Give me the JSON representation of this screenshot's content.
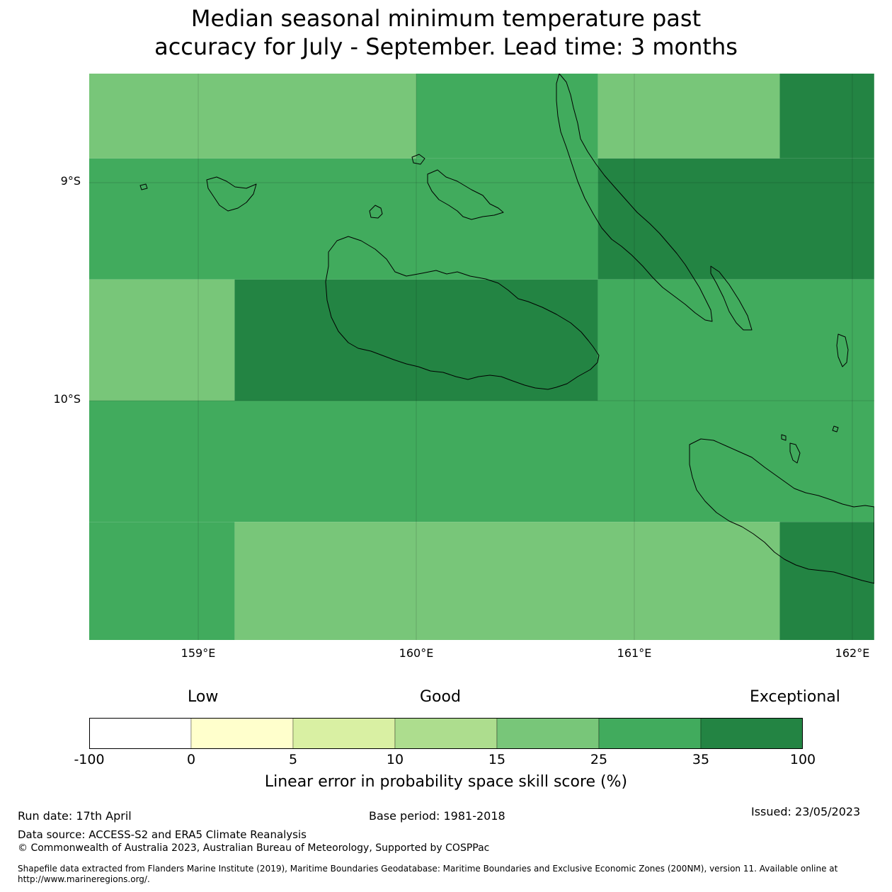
{
  "title": {
    "line1": "Median seasonal minimum temperature past",
    "line2": "accuracy for July - September. Lead time: 3 months"
  },
  "map": {
    "lat_labels": [
      "9°S",
      "10°S"
    ],
    "lon_labels": [
      "159°E",
      "160°E",
      "161°E",
      "162°E"
    ],
    "extent": {
      "lon_min": 158.5,
      "lon_max": 162.1,
      "lat_max": -8.5,
      "lat_min": -11.1
    },
    "grid_cells": [
      {
        "lon0": 158.5,
        "lon1": 160.0,
        "lat0": -8.5,
        "lat1": -8.889,
        "class": 4
      },
      {
        "lon0": 160.0,
        "lon1": 160.833,
        "lat0": -8.5,
        "lat1": -8.889,
        "class": 5
      },
      {
        "lon0": 160.833,
        "lon1": 161.667,
        "lat0": -8.5,
        "lat1": -8.889,
        "class": 4
      },
      {
        "lon0": 161.667,
        "lon1": 162.1,
        "lat0": -8.5,
        "lat1": -8.889,
        "class": 6
      },
      {
        "lon0": 158.5,
        "lon1": 160.833,
        "lat0": -8.889,
        "lat1": -9.444,
        "class": 5
      },
      {
        "lon0": 160.833,
        "lon1": 162.1,
        "lat0": -8.889,
        "lat1": -9.444,
        "class": 6
      },
      {
        "lon0": 158.5,
        "lon1": 159.167,
        "lat0": -9.444,
        "lat1": -10.0,
        "class": 4
      },
      {
        "lon0": 159.167,
        "lon1": 160.833,
        "lat0": -9.444,
        "lat1": -10.0,
        "class": 6
      },
      {
        "lon0": 160.833,
        "lon1": 162.1,
        "lat0": -9.444,
        "lat1": -10.0,
        "class": 5
      },
      {
        "lon0": 158.5,
        "lon1": 162.1,
        "lat0": -10.0,
        "lat1": -10.556,
        "class": 5
      },
      {
        "lon0": 158.5,
        "lon1": 159.167,
        "lat0": -10.556,
        "lat1": -11.1,
        "class": 5
      },
      {
        "lon0": 159.167,
        "lon1": 161.667,
        "lat0": -10.556,
        "lat1": -11.1,
        "class": 4
      },
      {
        "lon0": 161.667,
        "lon1": 162.1,
        "lat0": -10.556,
        "lat1": -11.1,
        "class": 6
      }
    ]
  },
  "legend": {
    "categories": [
      "Low",
      "Good",
      "Exceptional"
    ],
    "colors": [
      "#ffffff",
      "#ffffcc",
      "#d9f0a3",
      "#addd8e",
      "#78c679",
      "#41ab5d",
      "#238443"
    ],
    "ticks": [
      "-100",
      "0",
      "5",
      "10",
      "15",
      "25",
      "35",
      "100"
    ],
    "label": "Linear error in probability space skill score (%)"
  },
  "footer": {
    "run_date": "Run date: 17th April",
    "base_period": "Base period: 1981-2018",
    "issued": "Issued: 23/05/2023",
    "data_source": "Data source: ACCESS-S2 and ERA5 Climate Reanalysis",
    "copyright": "© Commonwealth of Australia 2023, Australian Bureau of Meteorology, Supported by COSPPac",
    "shapefile_line1": "Shapefile data extracted from Flanders Marine Institute (2019), Maritime Boundaries Geodatabase: Maritime Boundaries and Exclusive Economic Zones (200NM), version 11. Available online at",
    "shapefile_line2": "http://www.marineregions.org/."
  }
}
